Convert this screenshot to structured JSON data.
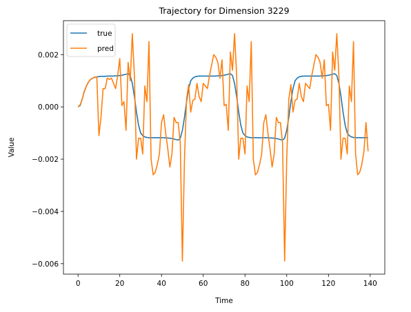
{
  "chart_data": {
    "type": "line",
    "title": "Trajectory for Dimension 3229",
    "xlabel": "Time",
    "ylabel": "Value",
    "xlim": [
      -7,
      147
    ],
    "ylim": [
      -0.0064,
      0.0033
    ],
    "x_ticks": [
      0,
      20,
      40,
      60,
      80,
      100,
      120,
      140
    ],
    "x_tick_labels": [
      "0",
      "20",
      "40",
      "60",
      "80",
      "100",
      "120",
      "140"
    ],
    "y_ticks": [
      0.002,
      0.0,
      -0.002,
      -0.004,
      -0.006
    ],
    "y_tick_labels": [
      "0.002",
      "0.000",
      "−0.002",
      "−0.004",
      "−0.006"
    ],
    "legend_position": "top-left",
    "grid": false,
    "series": [
      {
        "name": "true",
        "color": "#1f77b4",
        "x": [
          0,
          1,
          2,
          3,
          4,
          5,
          6,
          7,
          8,
          9,
          10,
          11,
          12,
          13,
          14,
          15,
          16,
          17,
          18,
          19,
          20,
          21,
          22,
          23,
          24,
          25,
          26,
          27,
          28,
          29,
          30,
          31,
          32,
          33,
          34,
          35,
          36,
          37,
          38,
          39,
          40,
          41,
          42,
          43,
          44,
          45,
          46,
          47,
          48,
          49,
          50,
          51,
          52,
          53,
          54,
          55,
          56,
          57,
          58,
          59,
          60,
          61,
          62,
          63,
          64,
          65,
          66,
          67,
          68,
          69,
          70,
          71,
          72,
          73,
          74,
          75,
          76,
          77,
          78,
          79,
          80,
          81,
          82,
          83,
          84,
          85,
          86,
          87,
          88,
          89,
          90,
          91,
          92,
          93,
          94,
          95,
          96,
          97,
          98,
          99,
          100,
          101,
          102,
          103,
          104,
          105,
          106,
          107,
          108,
          109,
          110,
          111,
          112,
          113,
          114,
          115,
          116,
          117,
          118,
          119,
          120,
          121,
          122,
          123,
          124,
          125,
          126,
          127,
          128,
          129,
          130,
          131,
          132,
          133,
          134,
          135,
          136,
          137,
          138,
          139
        ],
        "values": [
          0.0,
          5e-05,
          0.0003,
          0.0006,
          0.0008,
          0.00095,
          0.00105,
          0.0011,
          0.00113,
          0.00115,
          0.00116,
          0.00117,
          0.00117,
          0.00117,
          0.00118,
          0.00118,
          0.00118,
          0.00118,
          0.00119,
          0.00119,
          0.0012,
          0.00121,
          0.00123,
          0.00125,
          0.00127,
          0.0012,
          0.0009,
          0.0004,
          -0.0002,
          -0.0007,
          -0.001,
          -0.0011,
          -0.00115,
          -0.00117,
          -0.00118,
          -0.00118,
          -0.00118,
          -0.00118,
          -0.00118,
          -0.00118,
          -0.00118,
          -0.00118,
          -0.00119,
          -0.00119,
          -0.0012,
          -0.00121,
          -0.00123,
          -0.00125,
          -0.00127,
          -0.0012,
          -0.0009,
          -0.0004,
          0.0002,
          0.0007,
          0.001,
          0.0011,
          0.00115,
          0.00117,
          0.00118,
          0.00118,
          0.00118,
          0.00118,
          0.00118,
          0.00118,
          0.00118,
          0.00118,
          0.00118,
          0.00119,
          0.00119,
          0.0012,
          0.00121,
          0.00123,
          0.00125,
          0.00127,
          0.0012,
          0.0009,
          0.0004,
          -0.0002,
          -0.0007,
          -0.001,
          -0.0011,
          -0.00115,
          -0.00117,
          -0.00118,
          -0.00118,
          -0.00118,
          -0.00118,
          -0.00118,
          -0.00118,
          -0.00118,
          -0.00118,
          -0.00118,
          -0.00119,
          -0.00119,
          -0.0012,
          -0.00121,
          -0.00123,
          -0.00125,
          -0.00127,
          -0.0012,
          -0.0009,
          -0.0004,
          0.0002,
          0.0007,
          0.001,
          0.0011,
          0.00115,
          0.00117,
          0.00118,
          0.00118,
          0.00118,
          0.00118,
          0.00118,
          0.00118,
          0.00118,
          0.00118,
          0.00118,
          0.00119,
          0.00119,
          0.0012,
          0.00121,
          0.00123,
          0.00125,
          0.00127,
          0.0012,
          0.0009,
          0.0004,
          -0.0002,
          -0.0007,
          -0.001,
          -0.0011,
          -0.00115,
          -0.00117,
          -0.00118,
          -0.00118,
          -0.00118,
          -0.00118,
          -0.00118,
          -0.00118,
          -0.00118
        ]
      },
      {
        "name": "pred",
        "color": "#ff7f0e",
        "x": [
          0,
          1,
          2,
          3,
          4,
          5,
          6,
          7,
          8,
          9,
          10,
          11,
          12,
          13,
          14,
          15,
          16,
          17,
          18,
          19,
          20,
          21,
          22,
          23,
          24,
          25,
          26,
          27,
          28,
          29,
          30,
          31,
          32,
          33,
          34,
          35,
          36,
          37,
          38,
          39,
          40,
          41,
          42,
          43,
          44,
          45,
          46,
          47,
          48,
          49,
          50,
          51,
          52,
          53,
          54,
          55,
          56,
          57,
          58,
          59,
          60,
          61,
          62,
          63,
          64,
          65,
          66,
          67,
          68,
          69,
          70,
          71,
          72,
          73,
          74,
          75,
          76,
          77,
          78,
          79,
          80,
          81,
          82,
          83,
          84,
          85,
          86,
          87,
          88,
          89,
          90,
          91,
          92,
          93,
          94,
          95,
          96,
          97,
          98,
          99,
          100,
          101,
          102,
          103,
          104,
          105,
          106,
          107,
          108,
          109,
          110,
          111,
          112,
          113,
          114,
          115,
          116,
          117,
          118,
          119,
          120,
          121,
          122,
          123,
          124,
          125,
          126,
          127,
          128,
          129,
          130,
          131,
          132,
          133,
          134,
          135,
          136,
          137,
          138,
          139
        ],
        "values": [
          0.0,
          8e-05,
          0.0003,
          0.00058,
          0.0008,
          0.00095,
          0.00105,
          0.0011,
          0.00114,
          0.00115,
          -0.0011,
          -0.0004,
          0.0007,
          0.0007,
          0.0011,
          0.00105,
          0.0011,
          0.0009,
          0.0007,
          0.0012,
          0.00185,
          5e-05,
          0.0002,
          -0.0009,
          0.0017,
          0.001,
          0.0028,
          0.0012,
          -0.002,
          -0.0012,
          -0.0012,
          -0.0018,
          0.0008,
          0.0002,
          0.0025,
          -0.002,
          -0.0026,
          -0.0025,
          -0.0022,
          -0.0018,
          -0.0006,
          -0.0003,
          -0.001,
          -0.0016,
          -0.0023,
          -0.0018,
          -0.0004,
          -0.0006,
          -0.0006,
          -0.0014,
          -0.0059,
          -0.002,
          0.0003,
          0.00085,
          -0.0002,
          0.00025,
          0.0003,
          0.0009,
          0.0004,
          0.0002,
          0.0009,
          0.0008,
          0.0007,
          0.0012,
          0.0016,
          0.002,
          0.0019,
          0.0017,
          0.0011,
          0.0018,
          5e-05,
          0.0001,
          -0.0009,
          0.0021,
          0.0014,
          0.0028,
          0.0012,
          -0.002,
          -0.0012,
          -0.0012,
          -0.0018,
          0.0008,
          0.0002,
          0.0025,
          -0.002,
          -0.0026,
          -0.0025,
          -0.0022,
          -0.0018,
          -0.0006,
          -0.0003,
          -0.001,
          -0.0016,
          -0.0023,
          -0.0018,
          -0.0004,
          -0.0006,
          -0.0006,
          -0.0014,
          -0.0059,
          -0.002,
          0.0003,
          0.00085,
          -0.0002,
          0.00025,
          0.0003,
          0.0009,
          0.0004,
          0.0002,
          0.0009,
          0.0008,
          0.0007,
          0.0012,
          0.0016,
          0.002,
          0.0019,
          0.0017,
          0.0011,
          0.0018,
          5e-05,
          0.0001,
          -0.0009,
          0.0021,
          0.0014,
          0.0028,
          0.0012,
          -0.002,
          -0.0012,
          -0.0012,
          -0.0018,
          0.0008,
          0.0002,
          0.0025,
          -0.0018,
          -0.0026,
          -0.0025,
          -0.0022,
          -0.0017,
          -0.0006,
          -0.0017
        ]
      }
    ]
  }
}
